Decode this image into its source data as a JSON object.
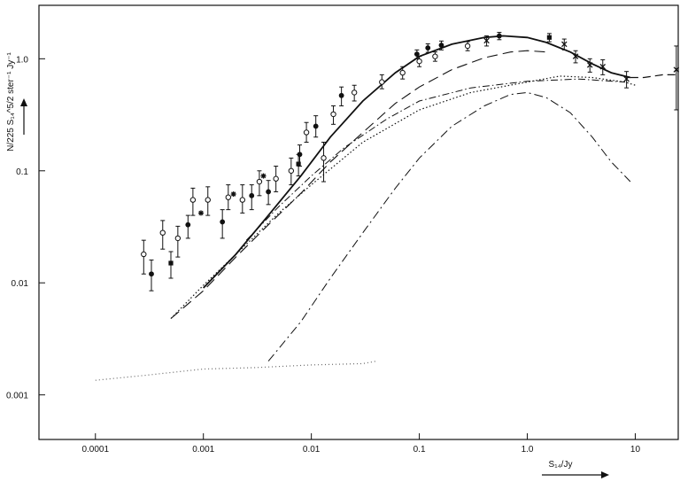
{
  "chart_data": {
    "type": "scatter",
    "title": "",
    "xscale": "log",
    "yscale": "log",
    "xlim": [
      3e-05,
      25
    ],
    "ylim": [
      0.0004,
      3
    ],
    "grid": false,
    "xlabel": "S₁₄/Jy",
    "ylabel": "N/225 S₁₄^5/2 ster⁻¹ Jy⁻¹",
    "x_ticks": [
      {
        "value": 0.0001,
        "label": "0.0001"
      },
      {
        "value": 0.001,
        "label": "0.001"
      },
      {
        "value": 0.01,
        "label": "0.01"
      },
      {
        "value": 0.1,
        "label": "0.1"
      },
      {
        "value": 1.0,
        "label": "1.0"
      },
      {
        "value": 10,
        "label": "10"
      }
    ],
    "y_ticks": [
      {
        "value": 0.001,
        "label": "0.001"
      },
      {
        "value": 0.01,
        "label": "0.01"
      },
      {
        "value": 0.1,
        "label": "0.1"
      },
      {
        "value": 1.0,
        "label": "1.0"
      }
    ],
    "series": [
      {
        "marker": "open-circle",
        "points": [
          {
            "x": 0.00028,
            "y": 0.018,
            "lo": 0.012,
            "hi": 0.024
          },
          {
            "x": 0.00042,
            "y": 0.028,
            "lo": 0.02,
            "hi": 0.036
          },
          {
            "x": 0.00058,
            "y": 0.025,
            "lo": 0.017,
            "hi": 0.032
          },
          {
            "x": 0.0008,
            "y": 0.055,
            "lo": 0.04,
            "hi": 0.07
          },
          {
            "x": 0.0011,
            "y": 0.055,
            "lo": 0.04,
            "hi": 0.072
          },
          {
            "x": 0.0017,
            "y": 0.058,
            "lo": 0.045,
            "hi": 0.075
          },
          {
            "x": 0.0023,
            "y": 0.055,
            "lo": 0.042,
            "hi": 0.075
          },
          {
            "x": 0.0033,
            "y": 0.08,
            "lo": 0.06,
            "hi": 0.1
          },
          {
            "x": 0.0047,
            "y": 0.085,
            "lo": 0.065,
            "hi": 0.11
          },
          {
            "x": 0.0065,
            "y": 0.1,
            "lo": 0.075,
            "hi": 0.13
          },
          {
            "x": 0.009,
            "y": 0.22,
            "lo": 0.18,
            "hi": 0.27
          },
          {
            "x": 0.013,
            "y": 0.13,
            "lo": 0.08,
            "hi": 0.18
          },
          {
            "x": 0.016,
            "y": 0.32,
            "lo": 0.26,
            "hi": 0.38
          },
          {
            "x": 0.025,
            "y": 0.5,
            "lo": 0.42,
            "hi": 0.58
          },
          {
            "x": 0.045,
            "y": 0.62,
            "lo": 0.54,
            "hi": 0.72
          },
          {
            "x": 0.07,
            "y": 0.75,
            "lo": 0.66,
            "hi": 0.85
          },
          {
            "x": 0.1,
            "y": 0.95,
            "lo": 0.85,
            "hi": 1.05
          },
          {
            "x": 0.14,
            "y": 1.05,
            "lo": 0.95,
            "hi": 1.15
          },
          {
            "x": 0.28,
            "y": 1.3,
            "lo": 1.18,
            "hi": 1.42
          }
        ]
      },
      {
        "marker": "filled-circle",
        "points": [
          {
            "x": 0.00033,
            "y": 0.012,
            "lo": 0.0085,
            "hi": 0.016
          },
          {
            "x": 0.00072,
            "y": 0.033,
            "lo": 0.025,
            "hi": 0.04
          },
          {
            "x": 0.0015,
            "y": 0.035,
            "lo": 0.025,
            "hi": 0.045
          },
          {
            "x": 0.0028,
            "y": 0.06,
            "lo": 0.045,
            "hi": 0.075
          },
          {
            "x": 0.004,
            "y": 0.065,
            "lo": 0.05,
            "hi": 0.082
          },
          {
            "x": 0.0078,
            "y": 0.14,
            "lo": 0.11,
            "hi": 0.17
          },
          {
            "x": 0.011,
            "y": 0.25,
            "lo": 0.2,
            "hi": 0.31
          },
          {
            "x": 0.019,
            "y": 0.47,
            "lo": 0.38,
            "hi": 0.56
          },
          {
            "x": 0.095,
            "y": 1.1,
            "lo": 1.0,
            "hi": 1.2
          },
          {
            "x": 0.12,
            "y": 1.25,
            "lo": 1.14,
            "hi": 1.36
          },
          {
            "x": 0.16,
            "y": 1.32,
            "lo": 1.2,
            "hi": 1.44
          },
          {
            "x": 0.55,
            "y": 1.6,
            "lo": 1.48,
            "hi": 1.72
          }
        ]
      },
      {
        "marker": "filled-square",
        "points": [
          {
            "x": 0.0005,
            "y": 0.015,
            "lo": 0.011,
            "hi": 0.019
          },
          {
            "x": 0.0076,
            "y": 0.115,
            "lo": 0.09,
            "hi": 0.14
          },
          {
            "x": 1.6,
            "y": 1.55,
            "lo": 1.42,
            "hi": 1.68
          }
        ]
      },
      {
        "marker": "asterisk",
        "points": [
          {
            "x": 0.00095,
            "y": 0.042
          },
          {
            "x": 0.0019,
            "y": 0.062
          },
          {
            "x": 0.0036,
            "y": 0.09
          }
        ]
      },
      {
        "marker": "cross",
        "points": [
          {
            "x": 0.42,
            "y": 1.45,
            "lo": 1.3,
            "hi": 1.6
          },
          {
            "x": 2.2,
            "y": 1.35,
            "lo": 1.2,
            "hi": 1.5
          },
          {
            "x": 2.8,
            "y": 1.05,
            "lo": 0.92,
            "hi": 1.18
          },
          {
            "x": 3.8,
            "y": 0.88,
            "lo": 0.76,
            "hi": 1.0
          },
          {
            "x": 5.0,
            "y": 0.85,
            "lo": 0.72,
            "hi": 0.98
          },
          {
            "x": 8.3,
            "y": 0.66,
            "lo": 0.55,
            "hi": 0.77
          },
          {
            "x": 24,
            "y": 0.8,
            "lo": 0.35,
            "hi": 1.3
          }
        ]
      }
    ],
    "curves": [
      {
        "style": "solid",
        "points": [
          [
            0.001,
            0.009
          ],
          [
            0.002,
            0.018
          ],
          [
            0.004,
            0.04
          ],
          [
            0.008,
            0.09
          ],
          [
            0.015,
            0.2
          ],
          [
            0.03,
            0.42
          ],
          [
            0.06,
            0.75
          ],
          [
            0.1,
            1.05
          ],
          [
            0.2,
            1.35
          ],
          [
            0.4,
            1.55
          ],
          [
            0.6,
            1.6
          ],
          [
            1.0,
            1.55
          ],
          [
            1.5,
            1.4
          ],
          [
            2.5,
            1.15
          ],
          [
            4.0,
            0.9
          ],
          [
            6.0,
            0.75
          ],
          [
            9.0,
            0.68
          ]
        ]
      },
      {
        "style": "dashed",
        "points": [
          [
            9.0,
            0.68
          ],
          [
            12,
            0.68
          ],
          [
            18,
            0.72
          ],
          [
            25,
            0.72
          ]
        ]
      },
      {
        "style": "long-dash",
        "points": [
          [
            0.0005,
            0.0048
          ],
          [
            0.001,
            0.0085
          ],
          [
            0.002,
            0.017
          ],
          [
            0.004,
            0.033
          ],
          [
            0.008,
            0.063
          ],
          [
            0.015,
            0.12
          ],
          [
            0.03,
            0.22
          ],
          [
            0.06,
            0.4
          ],
          [
            0.1,
            0.56
          ],
          [
            0.2,
            0.8
          ],
          [
            0.4,
            1.02
          ],
          [
            0.7,
            1.15
          ],
          [
            1.0,
            1.18
          ],
          [
            1.5,
            1.15
          ]
        ]
      },
      {
        "style": "dash-dot",
        "points": [
          [
            0.0025,
            0.024
          ],
          [
            0.005,
            0.048
          ],
          [
            0.01,
            0.09
          ],
          [
            0.02,
            0.16
          ],
          [
            0.05,
            0.29
          ],
          [
            0.1,
            0.42
          ],
          [
            0.3,
            0.55
          ],
          [
            1.0,
            0.63
          ],
          [
            3.0,
            0.66
          ],
          [
            8.0,
            0.62
          ]
        ]
      },
      {
        "style": "dotted",
        "points": [
          [
            0.0005,
            0.0048
          ],
          [
            0.001,
            0.0095
          ],
          [
            0.002,
            0.018
          ],
          [
            0.005,
            0.042
          ],
          [
            0.01,
            0.075
          ],
          [
            0.03,
            0.18
          ],
          [
            0.1,
            0.35
          ],
          [
            0.3,
            0.5
          ],
          [
            1.0,
            0.62
          ],
          [
            2.0,
            0.7
          ],
          [
            4.0,
            0.68
          ],
          [
            8.0,
            0.62
          ],
          [
            10,
            0.58
          ]
        ]
      },
      {
        "style": "dash-dot-steep",
        "points": [
          [
            0.004,
            0.002
          ],
          [
            0.008,
            0.0045
          ],
          [
            0.015,
            0.011
          ],
          [
            0.03,
            0.028
          ],
          [
            0.06,
            0.07
          ],
          [
            0.1,
            0.13
          ],
          [
            0.2,
            0.25
          ],
          [
            0.4,
            0.38
          ],
          [
            0.7,
            0.48
          ],
          [
            1.0,
            0.5
          ],
          [
            1.5,
            0.45
          ],
          [
            2.5,
            0.33
          ],
          [
            4.0,
            0.2
          ],
          [
            6.0,
            0.12
          ],
          [
            9.0,
            0.08
          ]
        ]
      },
      {
        "style": "faint-dotted",
        "points": [
          [
            0.0001,
            0.00135
          ],
          [
            0.0003,
            0.0015
          ],
          [
            0.001,
            0.0017
          ],
          [
            0.003,
            0.00175
          ],
          [
            0.01,
            0.00185
          ],
          [
            0.03,
            0.0019
          ],
          [
            0.04,
            0.002
          ]
        ]
      }
    ]
  }
}
